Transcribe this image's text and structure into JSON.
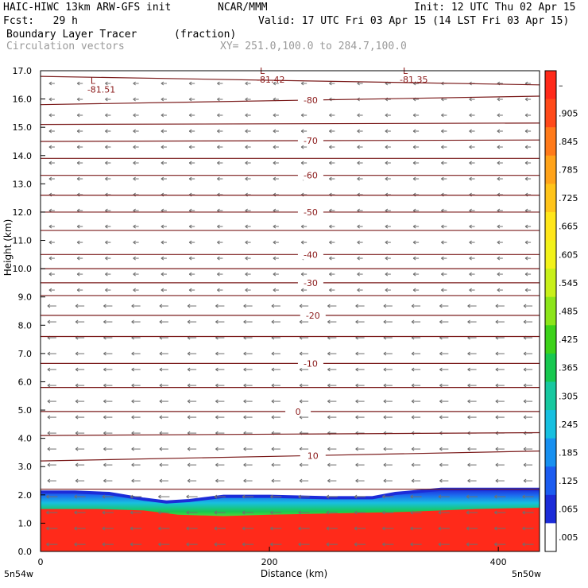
{
  "header": {
    "model_title": "HAIC-HIWC 13km ARW-GFS init",
    "org": "NCAR/MMM",
    "init": "Init: 12 UTC Thu 02 Apr 15",
    "fcst": "Fcst:   29 h",
    "valid": "Valid: 17 UTC Fri 03 Apr 15 (14 LST Fri 03 Apr 15)",
    "field": "Boundary Layer Tracer",
    "units": "(fraction)",
    "vectors": "Circulation vectors",
    "xy_range": "XY= 251.0,100.0 to 284.7,100.0"
  },
  "chart_data": {
    "type": "heatmap",
    "xlabel": "Distance (km)",
    "ylabel": "Height (km)",
    "xlim": [
      0,
      436
    ],
    "ylim": [
      0,
      17
    ],
    "x_ticks": [
      "0",
      "200",
      "400"
    ],
    "y_ticks": [
      "0.0",
      "1.0",
      "2.0",
      "3.0",
      "4.0",
      "5.0",
      "6.0",
      "7.0",
      "8.0",
      "9.0",
      "10.0",
      "11.0",
      "12.0",
      "13.0",
      "14.0",
      "15.0",
      "16.0",
      "17.0"
    ],
    "x_end_labels": {
      "left": "5n54w",
      "right": "5n50w"
    },
    "tracer_top_km": [
      [
        0,
        2.1
      ],
      [
        30,
        2.1
      ],
      [
        60,
        2.05
      ],
      [
        90,
        1.85
      ],
      [
        110,
        1.75
      ],
      [
        130,
        1.8
      ],
      [
        160,
        1.95
      ],
      [
        200,
        1.95
      ],
      [
        250,
        1.9
      ],
      [
        290,
        1.9
      ],
      [
        310,
        2.05
      ],
      [
        350,
        2.2
      ],
      [
        400,
        2.2
      ],
      [
        436,
        2.2
      ]
    ],
    "red_top_km": [
      [
        0,
        1.5
      ],
      [
        50,
        1.5
      ],
      [
        90,
        1.45
      ],
      [
        120,
        1.3
      ],
      [
        160,
        1.25
      ],
      [
        200,
        1.3
      ],
      [
        260,
        1.35
      ],
      [
        320,
        1.4
      ],
      [
        380,
        1.5
      ],
      [
        436,
        1.55
      ]
    ],
    "temperature_contours": [
      {
        "label": "10",
        "y_left": 3.2,
        "y_right": 3.55,
        "label_x": 238
      },
      {
        "label": "0",
        "y_left": 4.95,
        "y_right": 4.95,
        "label_x": 225
      },
      {
        "label": "-10",
        "y_left": 6.65,
        "y_right": 6.65,
        "label_x": 236
      },
      {
        "label": "-20",
        "y_left": 8.35,
        "y_right": 8.35,
        "label_x": 238
      },
      {
        "label": "-30",
        "y_left": 9.5,
        "y_right": 9.5,
        "label_x": 236
      },
      {
        "label": "-40",
        "y_left": 10.5,
        "y_right": 10.5,
        "label_x": 236
      },
      {
        "label": "-50",
        "y_left": 12.0,
        "y_right": 12.0,
        "label_x": 236
      },
      {
        "label": "-60",
        "y_left": 13.3,
        "y_right": 13.3,
        "label_x": 236
      },
      {
        "label": "-70",
        "y_left": 14.5,
        "y_right": 14.55,
        "label_x": 236
      },
      {
        "label": "-80",
        "y_left": 15.8,
        "y_right": 16.1,
        "label_x": 236
      }
    ],
    "unlabeled_contours": [
      [
        2.2,
        2.2
      ],
      [
        4.1,
        4.2
      ],
      [
        5.8,
        5.8
      ],
      [
        7.6,
        7.6
      ],
      [
        9.05,
        9.05
      ],
      [
        10.0,
        10.0
      ],
      [
        11.35,
        11.35
      ],
      [
        12.6,
        12.6
      ],
      [
        13.9,
        13.9
      ],
      [
        15.1,
        15.15
      ],
      [
        16.8,
        16.5
      ]
    ],
    "lows": [
      {
        "label": "L",
        "value": "-81.51",
        "x": 45,
        "y": 16.25
      },
      {
        "label": "L",
        "value": "-81.42",
        "x": 193,
        "y": 16.6
      },
      {
        "label": "L",
        "value": "-81.35",
        "x": 318,
        "y": 16.6
      }
    ],
    "colorbar": {
      "labels": [
        "–",
        ".905",
        ".845",
        ".785",
        ".725",
        ".665",
        ".605",
        ".545",
        ".485",
        ".425",
        ".365",
        ".305",
        ".245",
        ".185",
        ".125",
        ".065",
        ".005"
      ],
      "colors": [
        "#ff2a1a",
        "#ff4a1a",
        "#ff7a1a",
        "#ffa31a",
        "#ffc41a",
        "#ffe61a",
        "#f2f21a",
        "#c8f01a",
        "#8ce51a",
        "#3dd21a",
        "#18c850",
        "#18c8a0",
        "#18c0e0",
        "#1890f0",
        "#1c5cf0",
        "#1c2cd8",
        "#ffffff"
      ]
    }
  }
}
